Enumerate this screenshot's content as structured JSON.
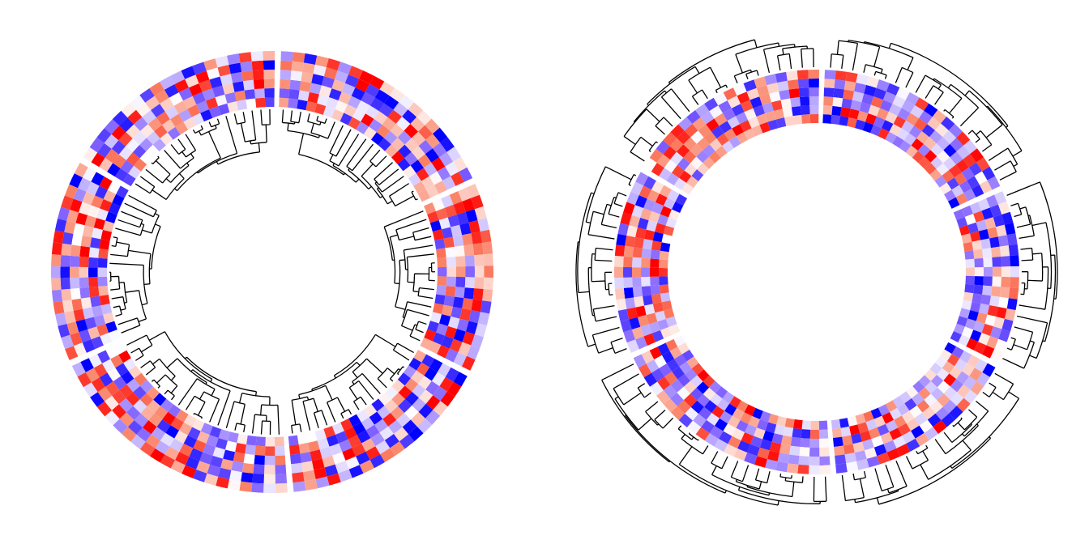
{
  "chart_data": [
    {
      "type": "heatmap",
      "subtype": "circular-heatmap",
      "title": "",
      "tracks": 6,
      "sectors": 6,
      "cells_per_sector": [
        20,
        16,
        18,
        22,
        17,
        19
      ],
      "dendrogram": "inside",
      "color_scale": {
        "low": "#0000ff",
        "mid": "#ffffff",
        "high": "#ff0000"
      },
      "legend": "none"
    },
    {
      "type": "heatmap",
      "subtype": "circular-heatmap",
      "title": "",
      "tracks": 6,
      "sectors": 6,
      "cells_per_sector": [
        20,
        16,
        18,
        22,
        17,
        19
      ],
      "dendrogram": "outside",
      "color_scale": {
        "low": "#0000ff",
        "mid": "#ffffff",
        "high": "#ff0000"
      },
      "legend": "none"
    }
  ]
}
